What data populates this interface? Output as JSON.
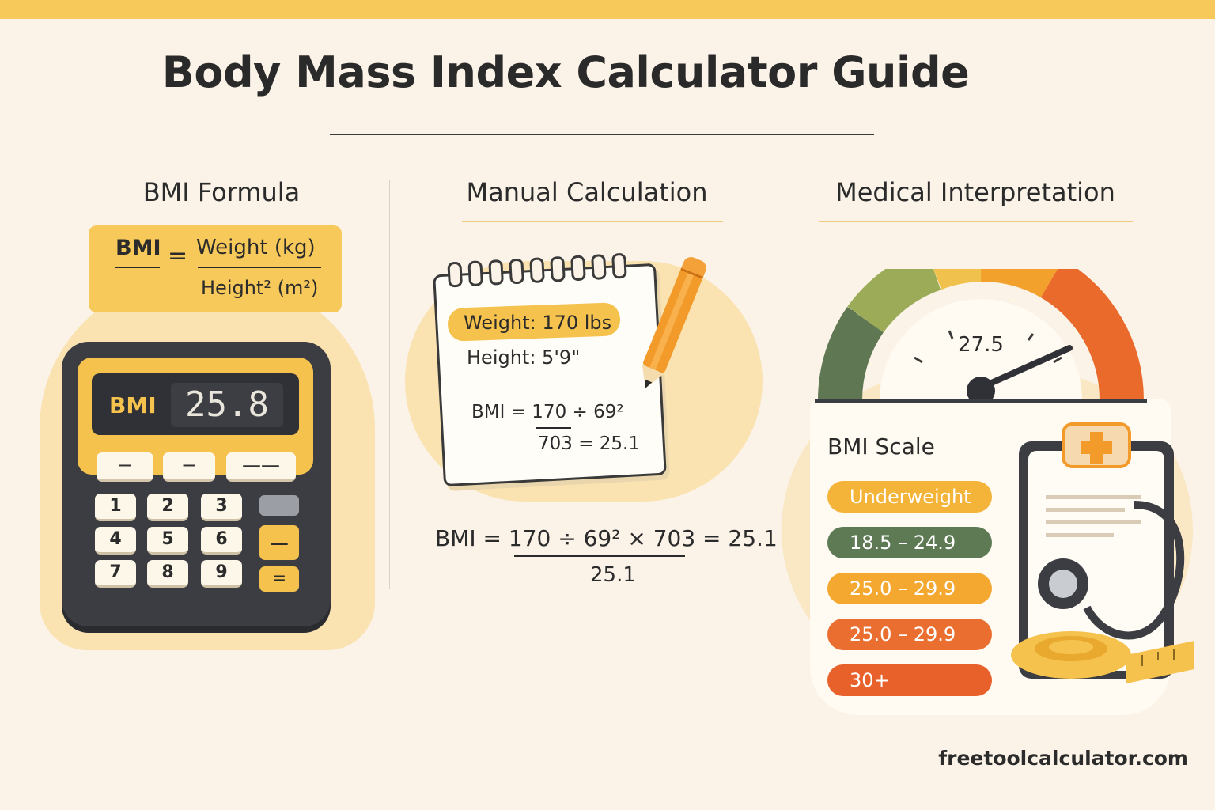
{
  "title": "Body Mass Index Calculator Guide",
  "sections": {
    "formula": {
      "heading": "BMI Formula",
      "lhs": "BMI",
      "equals": "=",
      "numerator": "Weight (kg)",
      "denominator": "Height² (m²)"
    },
    "manual": {
      "heading": "Manual Calculation"
    },
    "medical": {
      "heading": "Medical Interpretation"
    }
  },
  "calculator": {
    "display_label": "BMI",
    "display_value": "25.8",
    "op_keys": [
      "−",
      "−",
      "——"
    ],
    "keys": [
      "1",
      "2",
      "3",
      "4",
      "5",
      "6",
      "7",
      "8",
      "9"
    ],
    "minus_key": "—",
    "equals_key": "="
  },
  "notepad": {
    "weight": "Weight: 170 lbs",
    "height": "Height: 5'9\"",
    "formula_top": "BMI = 170 ÷ 69²",
    "formula_bottom": "703 = 25.1"
  },
  "big_formula": {
    "text": "BMI = 170 ÷ 69² × 703 = 25.1",
    "result": "25.1"
  },
  "gauge": {
    "value": "27.5",
    "needle_value": 27.5
  },
  "bmi_scale": {
    "title": "BMI Scale",
    "items": [
      {
        "label": "Underweight",
        "color": "#f4b43a"
      },
      {
        "label": "18.5 – 24.9",
        "color": "#5e7a55"
      },
      {
        "label": "25.0 – 29.9",
        "color": "#f4a830"
      },
      {
        "label": "25.0 – 29.9",
        "color": "#ea6e2f"
      },
      {
        "label": "30+",
        "color": "#e8602a"
      }
    ]
  },
  "footer": {
    "url": "freetoolcalculator.com"
  },
  "colors": {
    "accent": "#f7c95a",
    "background": "#fbf3e8",
    "dark": "#3b3d42"
  }
}
